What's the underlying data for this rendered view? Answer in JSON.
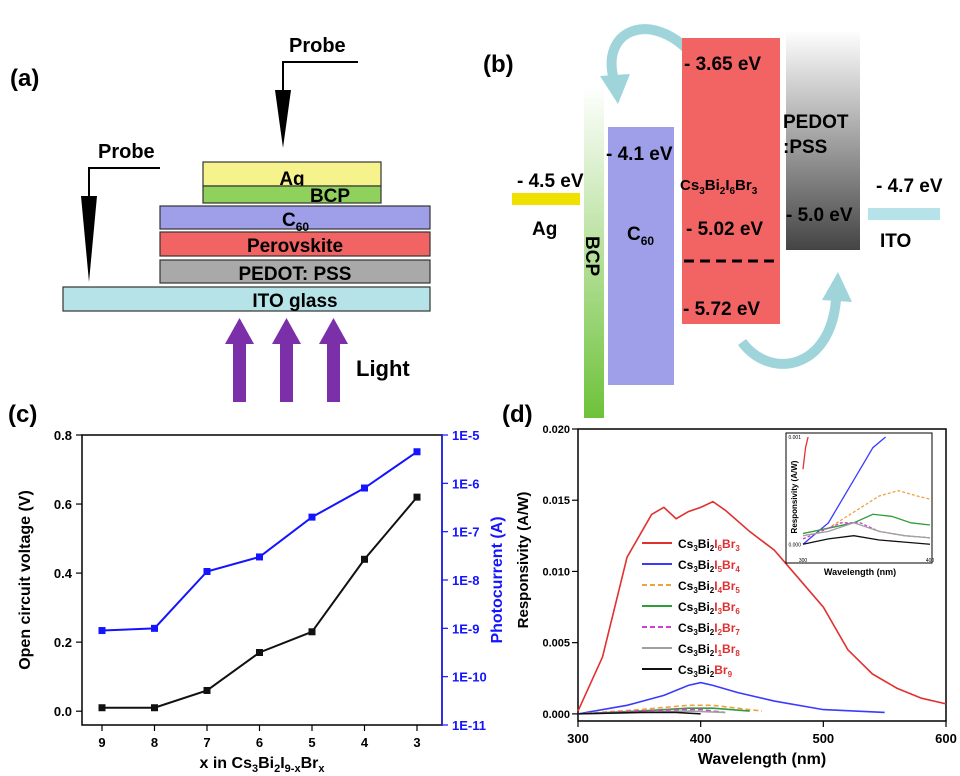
{
  "panel_labels": {
    "a": "(a)",
    "b": "(b)",
    "c": "(c)",
    "d": "(d)"
  },
  "colors": {
    "ag": "#f7f38c",
    "bcp": "#8fd15c",
    "c60": "#9e9fe8",
    "perovskite": "#f26363",
    "pedot": "#a9a9a9",
    "ito": "#b5e3e8",
    "arrow": "#7b2fa8",
    "black_series": "#111111",
    "blue_series": "#1414ff"
  },
  "panel_a": {
    "probe_top": "Probe",
    "probe_left": "Probe",
    "layers": [
      {
        "id": "ag",
        "label": "Ag"
      },
      {
        "id": "bcp",
        "label": "BCP"
      },
      {
        "id": "c60",
        "label": "C",
        "sub": "60"
      },
      {
        "id": "perovskite",
        "label": "Perovskite"
      },
      {
        "id": "pedot",
        "label": "PEDOT: PSS"
      },
      {
        "id": "ito",
        "label": "ITO glass"
      }
    ],
    "light_label": "Light"
  },
  "panel_b": {
    "ag_label": "Ag",
    "ag_level": "- 4.5 eV",
    "bcp_label": "BCP",
    "c60_label": "C",
    "c60_sub": "60",
    "c60_level": "- 4.1 eV",
    "perov_top": "- 3.65 eV",
    "perov_mid": "- 5.02 eV",
    "perov_bottom": "- 5.72 eV",
    "perov_formula": {
      "a": "Cs",
      "as": "3",
      "b": "Bi",
      "bs": "2",
      "c": "I",
      "cs": "6",
      "d": "Br",
      "ds": "3"
    },
    "pedot_label1": "PEDOT",
    "pedot_label2": ":PSS",
    "pedot_level": "- 5.0 eV",
    "ito_label": "ITO",
    "ito_level": "- 4.7 eV"
  },
  "chart_data": [
    {
      "panel": "c",
      "type": "line",
      "xlabel": {
        "pre": "x in Cs",
        "s1": "3",
        "m1": "Bi",
        "s2": "2",
        "m2": "I",
        "s3": "9-x",
        "m3": "Br",
        "s4": "x"
      },
      "ylabel": "Open circuit voltage (V)",
      "y2label": "Photocurrent (A)",
      "x_ticks": [
        "9",
        "8",
        "7",
        "6",
        "5",
        "4",
        "3"
      ],
      "ylim": [
        -0.04,
        0.8
      ],
      "y_ticks": [
        "0.0",
        "0.2",
        "0.4",
        "0.6",
        "0.8"
      ],
      "y2_ticks": [
        "1E-11",
        "1E-10",
        "1E-9",
        "1E-8",
        "1E-7",
        "1E-6",
        "1E-5"
      ],
      "y2lim_log10": [
        -11,
        -5
      ],
      "series": [
        {
          "axis": "left",
          "x": [
            9,
            8,
            7,
            6,
            5,
            4,
            3
          ],
          "y": [
            0.01,
            0.01,
            0.06,
            0.17,
            0.23,
            0.44,
            0.62
          ]
        },
        {
          "axis": "right",
          "x": [
            9,
            8,
            7,
            6,
            5,
            4,
            3
          ],
          "y": [
            9e-10,
            1e-09,
            1.5e-08,
            3e-08,
            2e-07,
            8e-07,
            4.5e-06
          ]
        }
      ]
    },
    {
      "panel": "d",
      "type": "line",
      "xlabel": "Wavelength (nm)",
      "ylabel": "Responsivity (A/W)",
      "xlim": [
        300,
        600
      ],
      "ylim": [
        -0.0005,
        0.02
      ],
      "x_ticks": [
        "300",
        "400",
        "500",
        "600"
      ],
      "y_ticks": [
        "0.000",
        "0.005",
        "0.010",
        "0.015",
        "0.020"
      ],
      "legend_placement": "center-left",
      "series": [
        {
          "name": {
            "a": "Cs",
            "as": "3",
            "b": "Bi",
            "bs": "2",
            "c": "I",
            "cs": "6",
            "d": "Br",
            "ds": "3"
          },
          "color": "#e03030",
          "dash": "solid",
          "x": [
            300,
            320,
            340,
            360,
            370,
            380,
            390,
            400,
            410,
            420,
            440,
            460,
            480,
            500,
            520,
            540,
            560,
            580,
            600
          ],
          "y": [
            0.0002,
            0.004,
            0.011,
            0.014,
            0.0145,
            0.0137,
            0.0142,
            0.0145,
            0.0149,
            0.0143,
            0.0128,
            0.0115,
            0.0095,
            0.0075,
            0.0045,
            0.0028,
            0.0018,
            0.0011,
            0.0007
          ]
        },
        {
          "name": {
            "a": "Cs",
            "as": "3",
            "b": "Bi",
            "bs": "2",
            "c": "I",
            "cs": "5",
            "d": "Br",
            "ds": "4"
          },
          "color": "#3a3aff",
          "dash": "solid",
          "x": [
            300,
            340,
            370,
            390,
            400,
            410,
            430,
            460,
            500,
            550
          ],
          "y": [
            0.0,
            0.0006,
            0.0013,
            0.002,
            0.0022,
            0.002,
            0.0015,
            0.0009,
            0.0003,
            0.0001
          ]
        },
        {
          "name": {
            "a": "Cs",
            "as": "3",
            "b": "Bi",
            "bs": "2",
            "c": "I",
            "cs": "4",
            "d": "Br",
            "ds": "5"
          },
          "color": "#f0a040",
          "dash": "dashed",
          "x": [
            300,
            350,
            390,
            410,
            430,
            450
          ],
          "y": [
            0.0,
            0.0003,
            0.0006,
            0.0006,
            0.0004,
            0.0002
          ]
        },
        {
          "name": {
            "a": "Cs",
            "as": "3",
            "b": "Bi",
            "bs": "2",
            "c": "I",
            "cs": "3",
            "d": "Br",
            "ds": "6"
          },
          "color": "#2e9e3a",
          "dash": "solid",
          "x": [
            300,
            350,
            390,
            410,
            440
          ],
          "y": [
            0.0,
            0.0002,
            0.0004,
            0.0004,
            0.0002
          ]
        },
        {
          "name": {
            "a": "Cs",
            "as": "3",
            "b": "Bi",
            "bs": "2",
            "c": "I",
            "cs": "2",
            "d": "Br",
            "ds": "7"
          },
          "color": "#d040d0",
          "dash": "dashed",
          "x": [
            300,
            350,
            385,
            400,
            420
          ],
          "y": [
            0.0,
            0.0002,
            0.0003,
            0.0003,
            0.0001
          ]
        },
        {
          "name": {
            "a": "Cs",
            "as": "3",
            "b": "Bi",
            "bs": "2",
            "c": "I",
            "cs": "1",
            "d": "Br",
            "ds": "8"
          },
          "color": "#a0a0a0",
          "dash": "solid",
          "x": [
            300,
            350,
            390,
            420
          ],
          "y": [
            0.0,
            0.0001,
            0.0002,
            0.0001
          ]
        },
        {
          "name": {
            "a": "Cs",
            "as": "3",
            "b": "Bi",
            "bs": "2",
            "c": "",
            "cs": "",
            "d": "Br",
            "ds": "9"
          },
          "color": "#111111",
          "dash": "solid",
          "x": [
            300,
            350,
            380,
            400
          ],
          "y": [
            0.0,
            0.0001,
            0.0001,
            0.0
          ]
        }
      ],
      "inset": {
        "xlabel": "Wavelength (nm)",
        "ylabel": "Responsivity (A/W)",
        "x_ticks": [
          "300",
          "400"
        ],
        "y_ticks": [
          "0.000",
          "0.001"
        ],
        "xlim": [
          300,
          400
        ],
        "ylim": [
          -0.0001,
          0.001
        ],
        "series": [
          {
            "color": "#e03030",
            "dash": "solid",
            "x": [
              300,
              302,
              304
            ],
            "y": [
              0.0007,
              0.0009,
              0.001
            ]
          },
          {
            "color": "#3a3aff",
            "dash": "solid",
            "x": [
              300,
              320,
              340,
              355,
              365
            ],
            "y": [
              0.0,
              0.0002,
              0.0006,
              0.0009,
              0.001
            ]
          },
          {
            "color": "#f0a040",
            "dash": "dashed",
            "x": [
              300,
              320,
              340,
              360,
              375,
              390,
              400
            ],
            "y": [
              0.0001,
              0.00015,
              0.0003,
              0.00045,
              0.0005,
              0.00045,
              0.00042
            ]
          },
          {
            "color": "#2e9e3a",
            "dash": "solid",
            "x": [
              300,
              320,
              340,
              355,
              370,
              385,
              400
            ],
            "y": [
              0.0001,
              0.00015,
              0.0002,
              0.00028,
              0.00026,
              0.0002,
              0.00018
            ]
          },
          {
            "color": "#d040d0",
            "dash": "dashed",
            "x": [
              300,
              320,
              330,
              345,
              360,
              380,
              400
            ],
            "y": [
              5e-05,
              0.00015,
              0.0002,
              0.0002,
              0.00012,
              8e-05,
              6e-05
            ]
          },
          {
            "color": "#a0a0a0",
            "dash": "solid",
            "x": [
              300,
              320,
              340,
              360,
              380,
              400
            ],
            "y": [
              8e-05,
              0.00012,
              0.0002,
              0.00012,
              8e-05,
              6e-05
            ]
          },
          {
            "color": "#111111",
            "dash": "solid",
            "x": [
              300,
              320,
              340,
              360,
              380,
              400
            ],
            "y": [
              0.0,
              5e-05,
              8e-05,
              4e-05,
              2e-05,
              0.0
            ]
          }
        ]
      }
    }
  ]
}
